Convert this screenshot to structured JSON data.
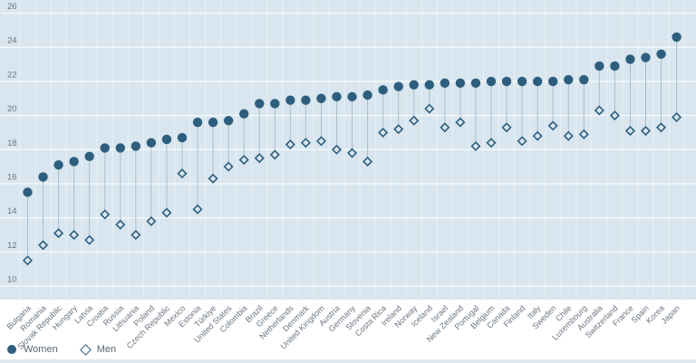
{
  "chart_data": {
    "type": "scatter",
    "subtype": "dumbbell",
    "title": "",
    "xlabel": "",
    "ylabel": "",
    "categories": [
      "Bulgaria",
      "Romania",
      "Slovak Republic",
      "Hungary",
      "Latvia",
      "Croatia",
      "Russia",
      "Lithuania",
      "Poland",
      "Czech Republic",
      "Mexico",
      "Estonia",
      "Türkiye",
      "United States",
      "Colombia",
      "Brazil",
      "Greece",
      "Netherlands",
      "Denmark",
      "United Kingdom",
      "Austria",
      "Germany",
      "Slovenia",
      "Costa Rica",
      "Ireland",
      "Norway",
      "Iceland",
      "Israel",
      "New Zealand",
      "Portugal",
      "Belgium",
      "Canada",
      "Finland",
      "Italy",
      "Sweden",
      "Chile",
      "Luxembourg",
      "Australia",
      "Switzerland",
      "France",
      "Spain",
      "Korea",
      "Japan"
    ],
    "series": [
      {
        "name": "Women",
        "marker": "filled-circle",
        "values": [
          15.5,
          16.4,
          17.1,
          17.3,
          17.6,
          18.1,
          18.1,
          18.2,
          18.4,
          18.6,
          18.7,
          19.6,
          19.6,
          19.7,
          20.1,
          20.7,
          20.7,
          20.9,
          20.9,
          21.0,
          21.1,
          21.1,
          21.2,
          21.5,
          21.7,
          21.8,
          21.8,
          21.9,
          21.9,
          21.9,
          22.0,
          22.0,
          22.0,
          22.0,
          22.0,
          22.1,
          22.1,
          22.9,
          22.9,
          23.3,
          23.4,
          23.6,
          24.6
        ]
      },
      {
        "name": "Men",
        "marker": "open-diamond",
        "values": [
          11.5,
          12.4,
          13.1,
          13.0,
          12.7,
          14.2,
          13.6,
          13.0,
          13.8,
          14.3,
          16.6,
          14.5,
          16.3,
          17.0,
          17.4,
          17.5,
          17.7,
          18.3,
          18.4,
          18.5,
          18.0,
          17.8,
          17.3,
          19.0,
          19.2,
          19.7,
          20.4,
          19.3,
          19.6,
          18.2,
          18.4,
          19.3,
          18.5,
          18.8,
          19.4,
          18.8,
          18.9,
          20.3,
          20.0,
          19.1,
          19.1,
          19.3,
          19.9
        ]
      }
    ],
    "ylim": [
      10,
      26
    ],
    "yticks": [
      10,
      12,
      14,
      16,
      18,
      20,
      22,
      24,
      26
    ],
    "grid": true,
    "legend_position": "bottom-left"
  },
  "legend": {
    "women_label": "Women",
    "men_label": "Men"
  },
  "colors": {
    "marker": "#2e5e7e",
    "plot_bg": "#d9e6ef",
    "h_grid": "#f4f8fb",
    "v_grid": "#eef4f9",
    "connector": "#a9bdcb",
    "axis_text": "#6a7480",
    "page_bg": "#ffffff",
    "bottom_strip": "#dfe9f1"
  }
}
